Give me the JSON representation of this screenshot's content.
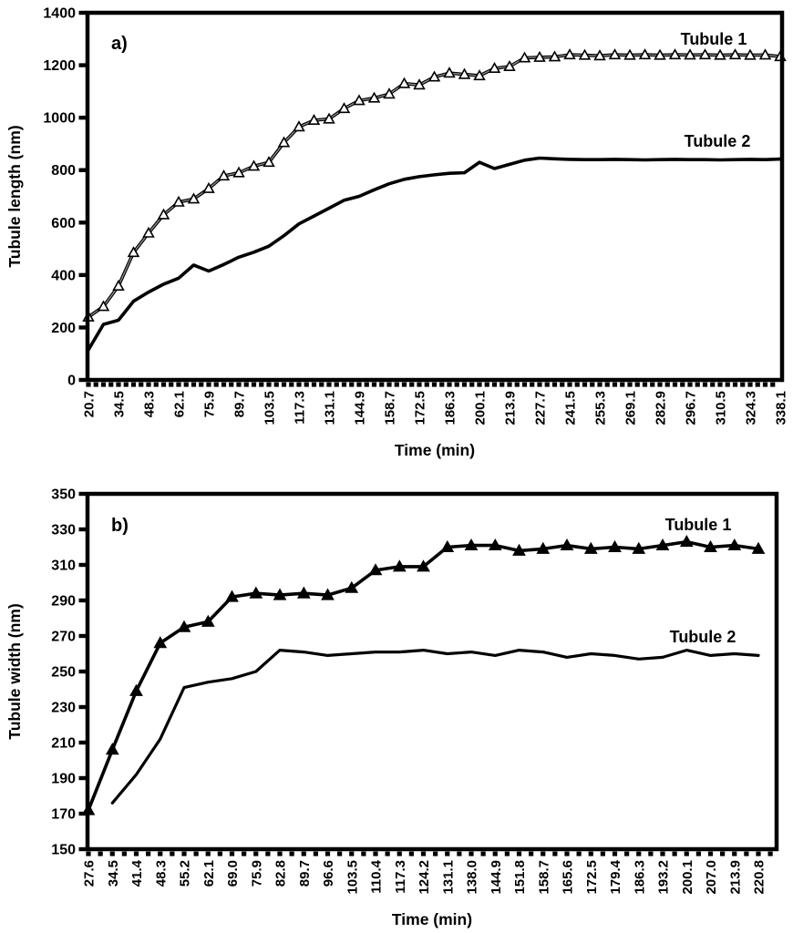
{
  "colors": {
    "ink": "#000000",
    "background": "#ffffff",
    "tubule1_inner_line": "#8f8f8f",
    "marker_fill_open": "#ffffff"
  },
  "chart_data": [
    {
      "type": "line",
      "panel_label": "a)",
      "xlabel": "Time (min)",
      "ylabel": "Tubule length (nm)",
      "ylim": [
        0,
        1400
      ],
      "yticks": [
        0,
        200,
        400,
        600,
        800,
        1000,
        1200,
        1400
      ],
      "grid": "off",
      "legend_position": "annotations-right",
      "x": [
        20.7,
        27.6,
        34.5,
        41.4,
        48.3,
        55.2,
        62.1,
        69.0,
        75.9,
        82.8,
        89.7,
        96.6,
        103.5,
        110.4,
        117.3,
        124.2,
        131.1,
        138.0,
        144.9,
        151.8,
        158.7,
        165.6,
        172.5,
        179.4,
        186.3,
        193.2,
        200.1,
        207.0,
        213.9,
        220.8,
        227.7,
        234.6,
        241.5,
        248.4,
        255.3,
        262.2,
        269.1,
        276.0,
        282.9,
        289.8,
        296.7,
        303.6,
        310.5,
        317.4,
        324.3,
        331.2,
        338.1
      ],
      "x_tick_labels": [
        "20.7",
        "34.5",
        "48.3",
        "62.1",
        "75.9",
        "89.7",
        "103.5",
        "117.3",
        "131.1",
        "144.9",
        "158.7",
        "172.5",
        "186.3",
        "200.1",
        "213.9",
        "227.7",
        "241.5",
        "255.3",
        "269.1",
        "282.9",
        "296.7",
        "310.5",
        "324.3",
        "338.1"
      ],
      "series": [
        {
          "name": "Tubule 1",
          "marker": "open-triangle",
          "values": [
            240,
            280,
            358,
            486,
            560,
            630,
            678,
            690,
            730,
            778,
            790,
            815,
            830,
            905,
            965,
            990,
            995,
            1035,
            1065,
            1075,
            1090,
            1130,
            1125,
            1155,
            1170,
            1165,
            1160,
            1188,
            1195,
            1228,
            1230,
            1232,
            1240,
            1238,
            1236,
            1240,
            1238,
            1240,
            1238,
            1240,
            1239,
            1240,
            1238,
            1240,
            1238,
            1239,
            1233
          ]
        },
        {
          "name": "Tubule 2",
          "marker": "none",
          "values": [
            115,
            212,
            228,
            300,
            335,
            365,
            388,
            438,
            415,
            440,
            468,
            487,
            510,
            550,
            595,
            625,
            655,
            685,
            700,
            725,
            748,
            765,
            775,
            782,
            788,
            790,
            830,
            806,
            822,
            838,
            846,
            843,
            841,
            840,
            840,
            841,
            840,
            839,
            840,
            841,
            840,
            840,
            839,
            840,
            841,
            840,
            842
          ]
        }
      ]
    },
    {
      "type": "line",
      "panel_label": "b)",
      "xlabel": "Time (min)",
      "ylabel": "Tubule width (nm)",
      "ylim": [
        150,
        350
      ],
      "yticks": [
        150,
        170,
        190,
        210,
        230,
        250,
        270,
        290,
        310,
        330,
        350
      ],
      "grid": "off",
      "legend_position": "annotations-right",
      "x": [
        27.6,
        34.5,
        41.4,
        48.3,
        55.2,
        62.1,
        69.0,
        75.9,
        82.8,
        89.7,
        96.6,
        103.5,
        110.4,
        117.3,
        124.2,
        131.1,
        138.0,
        144.9,
        151.8,
        158.7,
        165.6,
        172.5,
        179.4,
        186.3,
        193.2,
        200.1,
        207.0,
        213.9,
        220.8
      ],
      "x_tick_labels": [
        "27.6",
        "34.5",
        "41.4",
        "48.3",
        "55.2",
        "62.1",
        "69.0",
        "75.9",
        "82.8",
        "89.7",
        "96.6",
        "103.5",
        "110.4",
        "117.3",
        "124.2",
        "131.1",
        "138.0",
        "144.9",
        "151.8",
        "158.7",
        "165.6",
        "172.5",
        "179.4",
        "186.3",
        "193.2",
        "200.1",
        "207.0",
        "213.9",
        "220.8"
      ],
      "series": [
        {
          "name": "Tubule 1",
          "marker": "filled-triangle",
          "values": [
            172,
            206,
            239,
            266,
            275,
            278,
            292,
            294,
            293,
            294,
            293,
            297,
            307,
            309,
            309,
            320,
            321,
            321,
            318,
            319,
            321,
            319,
            320,
            319,
            321,
            323,
            320,
            321,
            319
          ]
        },
        {
          "name": "Tubule 2",
          "marker": "none",
          "values": [
            null,
            176,
            192,
            212,
            241,
            244,
            246,
            250,
            262,
            261,
            259,
            260,
            261,
            261,
            262,
            260,
            261,
            259,
            262,
            261,
            258,
            260,
            259,
            257,
            258,
            262,
            259,
            260,
            259
          ]
        }
      ]
    }
  ]
}
